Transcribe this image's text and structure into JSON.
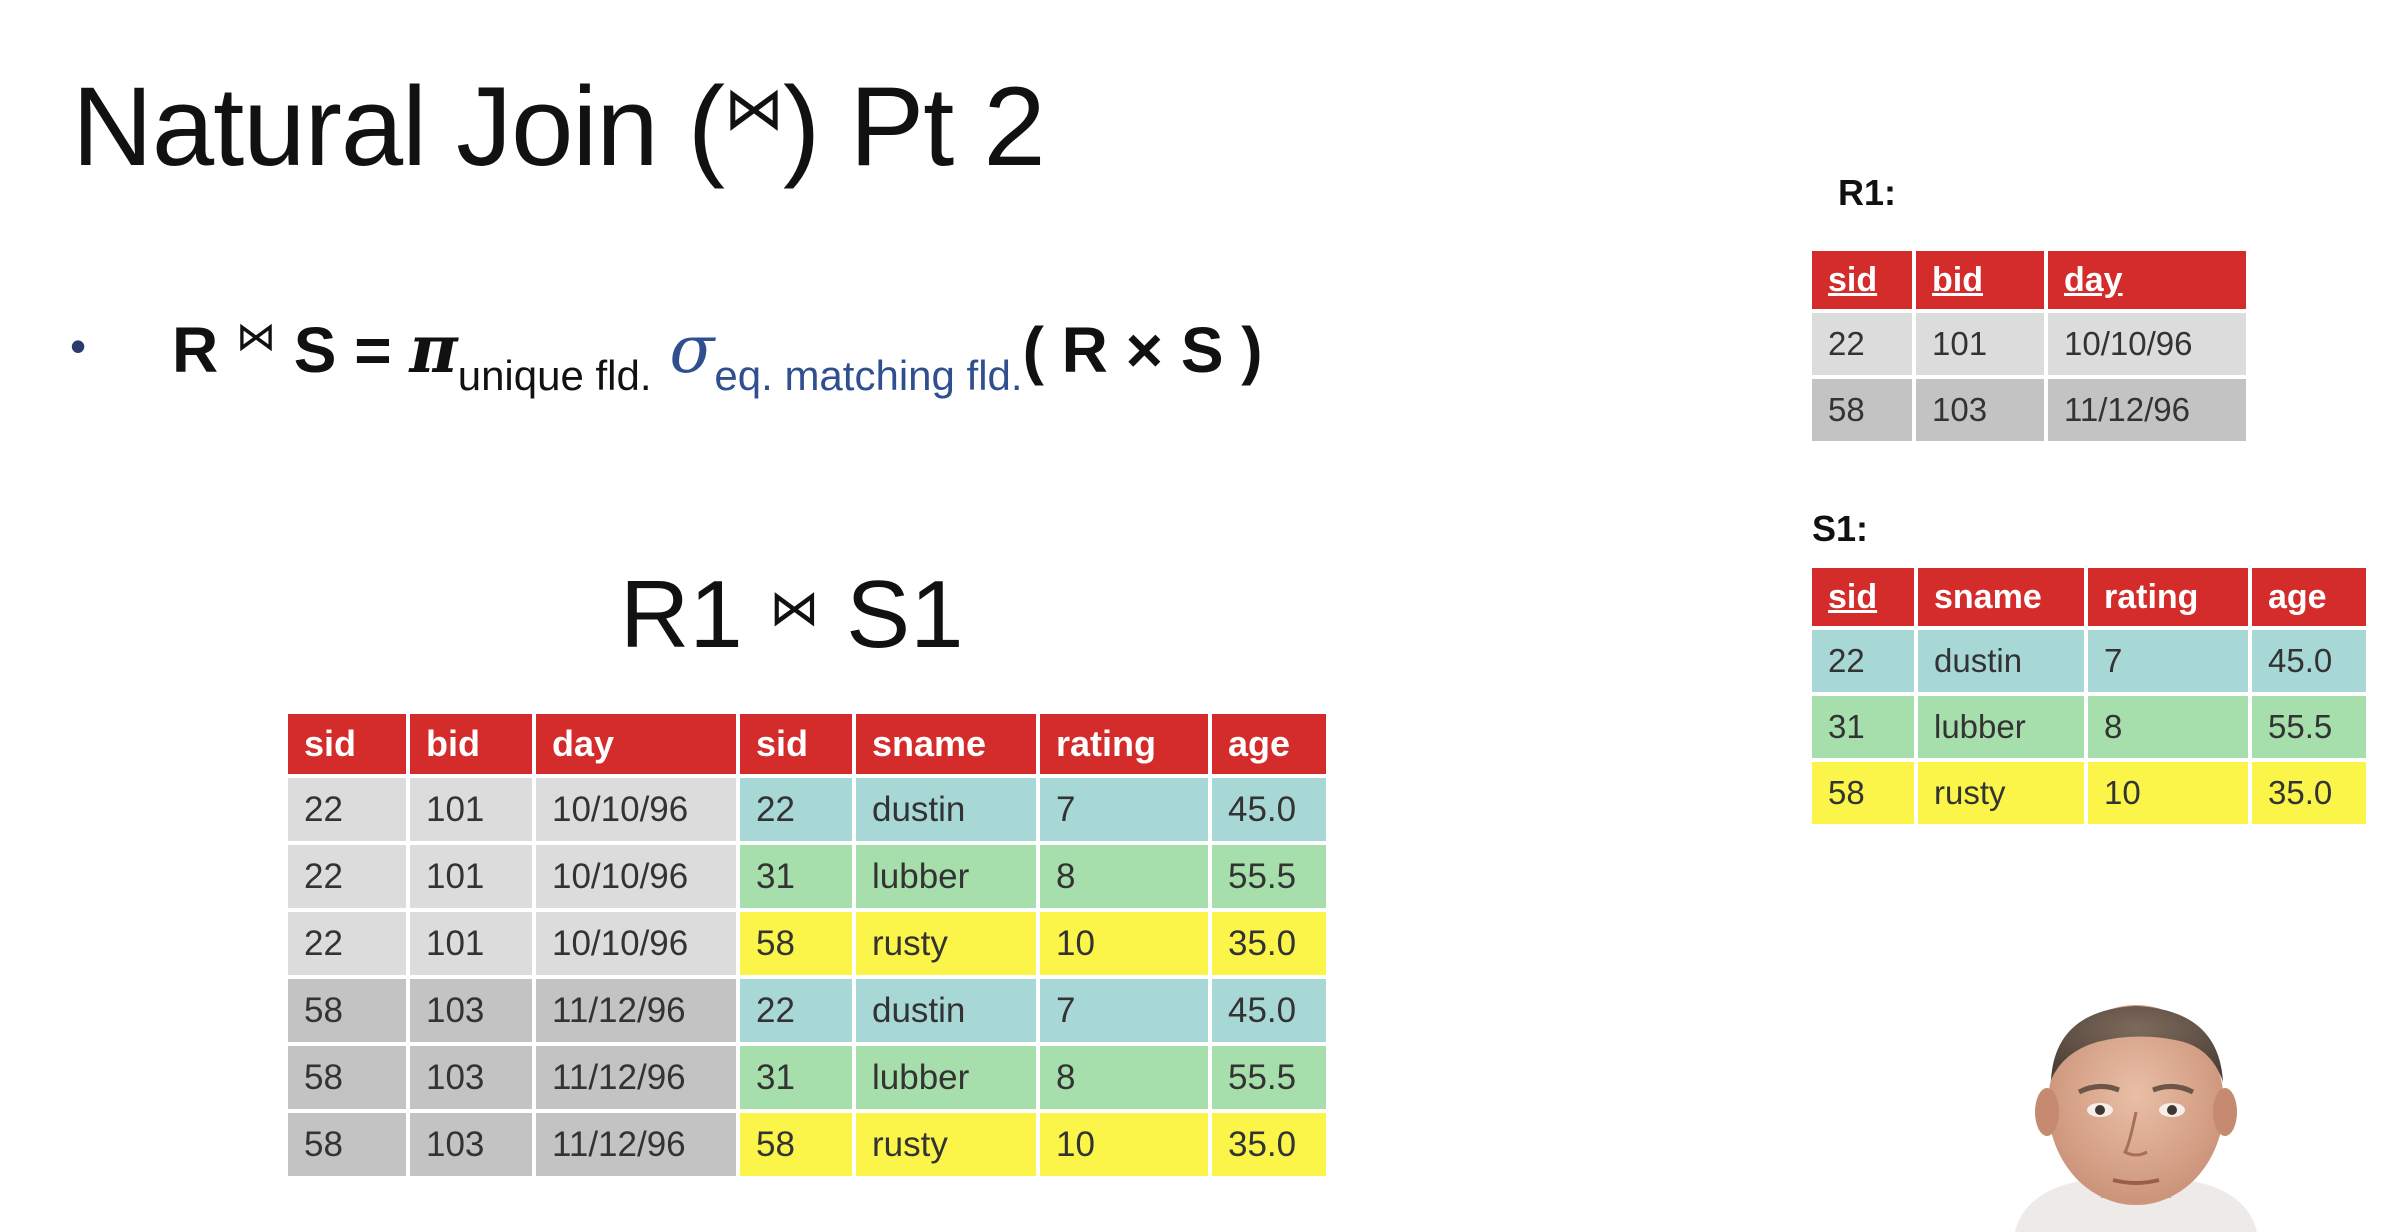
{
  "slide": {
    "title_pre": "Natural Join (",
    "title_symbol": "⋈",
    "title_post": ") Pt 2"
  },
  "formula": {
    "bullet": "•",
    "lhs_r": "R",
    "lhs_symbol": "⋈",
    "lhs_s": "S",
    "equals": "=",
    "pi": "π",
    "pi_sub": "unique fld.",
    "sigma": "σ",
    "sigma_sub": "eq. matching fld.",
    "rhs": "( R × S )"
  },
  "join_label": {
    "r": "R1",
    "symbol": "⋈",
    "s": "S1"
  },
  "joined_table": {
    "headers": [
      "sid",
      "bid",
      "day",
      "sid",
      "sname",
      "rating",
      "age"
    ],
    "rows": [
      [
        "22",
        "101",
        "10/10/96",
        "22",
        "dustin",
        "7",
        "45.0"
      ],
      [
        "22",
        "101",
        "10/10/96",
        "31",
        "lubber",
        "8",
        "55.5"
      ],
      [
        "22",
        "101",
        "10/10/96",
        "58",
        "rusty",
        "10",
        "35.0"
      ],
      [
        "58",
        "103",
        "11/12/96",
        "22",
        "dustin",
        "7",
        "45.0"
      ],
      [
        "58",
        "103",
        "11/12/96",
        "31",
        "lubber",
        "8",
        "55.5"
      ],
      [
        "58",
        "103",
        "11/12/96",
        "58",
        "rusty",
        "10",
        "35.0"
      ]
    ]
  },
  "r1": {
    "label": "R1:",
    "headers": [
      "sid",
      "bid",
      "day"
    ],
    "rows": [
      [
        "22",
        "101",
        "10/10/96"
      ],
      [
        "58",
        "103",
        "11/12/96"
      ]
    ]
  },
  "s1": {
    "label": "S1:",
    "headers": [
      "sid",
      "sname",
      "rating",
      "age"
    ],
    "rows": [
      [
        "22",
        "dustin",
        "7",
        "45.0"
      ],
      [
        "31",
        "lubber",
        "8",
        "55.5"
      ],
      [
        "58",
        "rusty",
        "10",
        "35.0"
      ]
    ]
  },
  "colors": {
    "header_red": "#d42b2b",
    "gray_light": "#dcdcdc",
    "gray_dark": "#c3c3c3",
    "cyan": "#a8d8d6",
    "green": "#a6dfac",
    "yellow": "#fbf549"
  },
  "presenter_icon": "presenter-video-thumbnail"
}
